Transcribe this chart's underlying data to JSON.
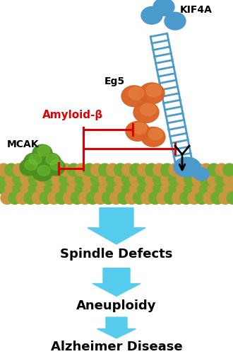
{
  "bg_color": "#ffffff",
  "arrow_color": "#55ccee",
  "labels": [
    "Spindle Defects",
    "Aneuploidy",
    "Alzheimer Disease"
  ],
  "label_fontsize": 13,
  "mcak_label": "MCAK",
  "eg5_label": "Eg5",
  "kif4a_label": "KIF4A",
  "amyloid_label": "Amyloid-β",
  "red_color": "#dd0000",
  "orange_color": "#d86020",
  "blue_color": "#3a88cc",
  "green_dark": "#2a6010",
  "green_mid": "#4a9020",
  "green_light": "#6aaa30",
  "mt_tan": "#c89840",
  "mt_green": "#70aa30",
  "kif4a_blue": "#4a9acc"
}
